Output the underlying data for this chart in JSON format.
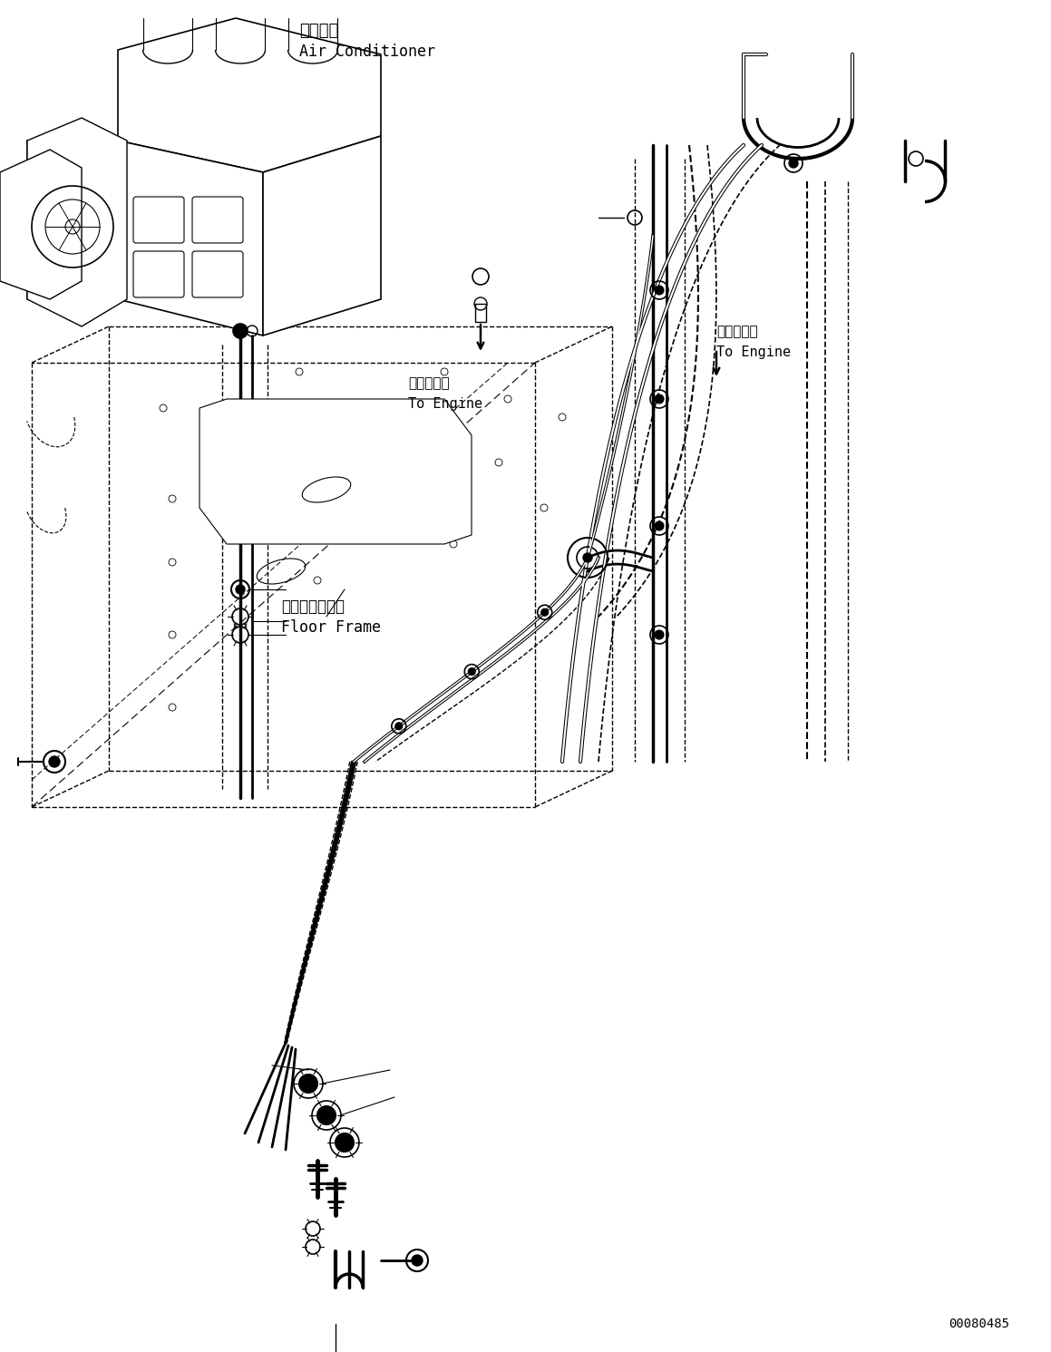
{
  "background_color": "#ffffff",
  "line_color": "#000000",
  "label_air_conditioner_jp": "エアコン",
  "label_air_conditioner_en": "Air Conditioner",
  "label_to_engine_jp_1": "エンジンへ",
  "label_to_engine_en_1": "To Engine",
  "label_to_engine_jp_2": "エンジンへ",
  "label_to_engine_en_2": "To Engine",
  "label_floor_frame_jp": "フロアフレーム",
  "label_floor_frame_en": "Floor Frame",
  "doc_number": "00080485",
  "fig_width": 11.59,
  "fig_height": 14.91,
  "dpi": 100
}
